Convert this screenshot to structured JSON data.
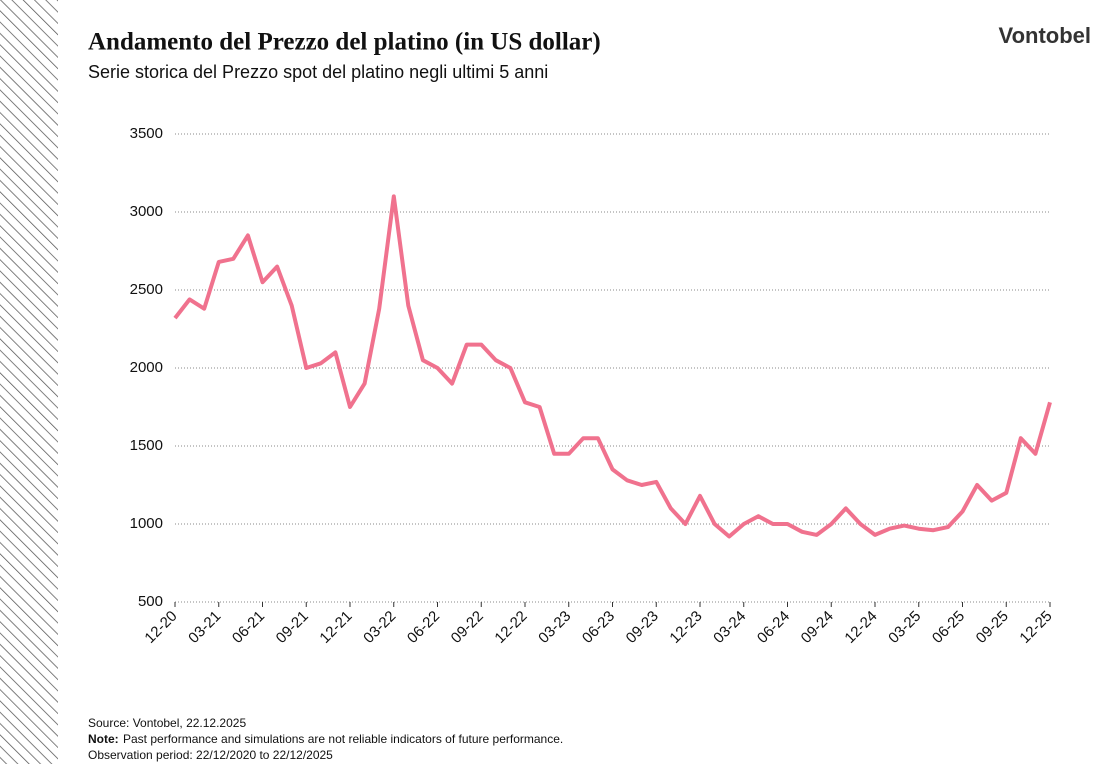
{
  "chart_data": {
    "type": "line",
    "title": "Andamento del Prezzo del platino (in US dollar)",
    "subtitle": "Serie storica del Prezzo spot del platino negli ultimi 5 anni",
    "brand": "Vontobel",
    "source": "Source: Vontobel, 22.12.2025",
    "note_label": "Note:",
    "note": "Past performance and simulations are not reliable indicators of future performance.",
    "observation": "Observation period: 22/12/2020 to 22/12/2025",
    "categories": [
      "12-20",
      null,
      null,
      "03-21",
      null,
      null,
      "06-21",
      null,
      null,
      "09-21",
      null,
      null,
      "12-21",
      null,
      null,
      "03-22",
      null,
      null,
      "06-22",
      null,
      null,
      "09-22",
      null,
      null,
      "12-22",
      null,
      null,
      "03-23",
      null,
      null,
      "06-23",
      null,
      null,
      "09-23",
      null,
      null,
      "12-23",
      null,
      null,
      "03-24",
      null,
      null,
      "06-24",
      null,
      null,
      "09-24",
      null,
      null,
      "12-24",
      null,
      null,
      "03-25",
      null,
      null,
      "06-25",
      null,
      null,
      "09-25",
      null,
      null,
      "12-25"
    ],
    "series": [
      {
        "name": "Platino",
        "color": "#f0728e",
        "values": [
          2320,
          2440,
          2380,
          2680,
          2700,
          2850,
          2550,
          2650,
          2400,
          2000,
          2030,
          2100,
          1750,
          1900,
          2380,
          3100,
          2400,
          2050,
          2000,
          1900,
          2150,
          2150,
          2050,
          2000,
          1780,
          1750,
          1450,
          1450,
          1550,
          1550,
          1350,
          1280,
          1250,
          1270,
          1100,
          1000,
          1180,
          1000,
          920,
          1000,
          1050,
          1000,
          1000,
          950,
          930,
          1000,
          1100,
          1000,
          930,
          970,
          990,
          970,
          960,
          980,
          1080,
          1250,
          1150,
          1200,
          1550,
          1450,
          1780
        ]
      }
    ],
    "ylim": [
      500,
      3500
    ],
    "yticks": [
      500,
      1000,
      1500,
      2000,
      2500,
      3000,
      3500
    ],
    "grid": true
  }
}
